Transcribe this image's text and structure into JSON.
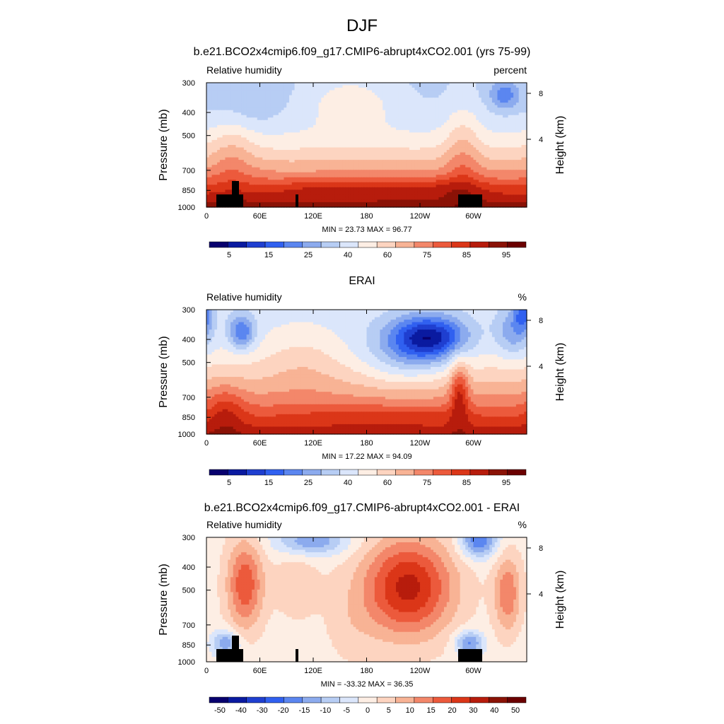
{
  "figure": {
    "title": "DJF"
  },
  "chart_data": [
    {
      "type": "heatmap",
      "title": "b.e21.BCO2x4cmip6.f09_g17.CMIP6-abrupt4xCO2.001 (yrs 75-99)",
      "left_label": "Relative humidity",
      "right_label": "percent",
      "ylabel": "Pressure (mb)",
      "y2label": "Height (km)",
      "xticks": [
        "0",
        "60E",
        "120E",
        "180",
        "120W",
        "60W"
      ],
      "yticks": [
        "300",
        "400",
        "500",
        "700",
        "850",
        "1000"
      ],
      "y2ticks": [
        "8",
        "4"
      ],
      "stats": "MIN =  23.73  MAX =  96.77",
      "colorbar_labels": [
        "5",
        "15",
        "25",
        "40",
        "60",
        "75",
        "85",
        "95"
      ],
      "range": [
        0,
        100
      ],
      "grid": false
    },
    {
      "type": "heatmap",
      "title": "ERAI",
      "left_label": "Relative humidity",
      "right_label": "%",
      "ylabel": "Pressure (mb)",
      "y2label": "Height (km)",
      "xticks": [
        "0",
        "60E",
        "120E",
        "180",
        "120W",
        "60W"
      ],
      "yticks": [
        "300",
        "400",
        "500",
        "700",
        "850",
        "1000"
      ],
      "y2ticks": [
        "8",
        "4"
      ],
      "stats": "MIN =  17.22  MAX =  94.09",
      "colorbar_labels": [
        "5",
        "15",
        "25",
        "40",
        "60",
        "75",
        "85",
        "95"
      ],
      "range": [
        0,
        100
      ],
      "grid": false
    },
    {
      "type": "heatmap",
      "title": "b.e21.BCO2x4cmip6.f09_g17.CMIP6-abrupt4xCO2.001 - ERAI",
      "left_label": "Relative humidity",
      "right_label": "%",
      "ylabel": "Pressure (mb)",
      "y2label": "Height (km)",
      "xticks": [
        "0",
        "60E",
        "120E",
        "180",
        "120W",
        "60W"
      ],
      "yticks": [
        "300",
        "400",
        "500",
        "700",
        "850",
        "1000"
      ],
      "y2ticks": [
        "8",
        "4"
      ],
      "stats": "MIN = -33.32  MAX =  36.35",
      "colorbar_labels": [
        "-50",
        "-40",
        "-30",
        "-20",
        "-15",
        "-10",
        "-5",
        "0",
        "5",
        "10",
        "15",
        "20",
        "30",
        "40",
        "50"
      ],
      "range": [
        -55,
        55
      ],
      "grid": false
    }
  ],
  "colors": {
    "palette": [
      "#08006e",
      "#0a1aa0",
      "#1f3fd0",
      "#3060f0",
      "#5b86f0",
      "#8cabee",
      "#b7cdf4",
      "#dbe6fb",
      "#fdeee4",
      "#fdd4c0",
      "#f8b395",
      "#f3876a",
      "#ec5a3c",
      "#db3618",
      "#b71c0c",
      "#8a1206",
      "#6b0000"
    ],
    "land": "#000000"
  }
}
